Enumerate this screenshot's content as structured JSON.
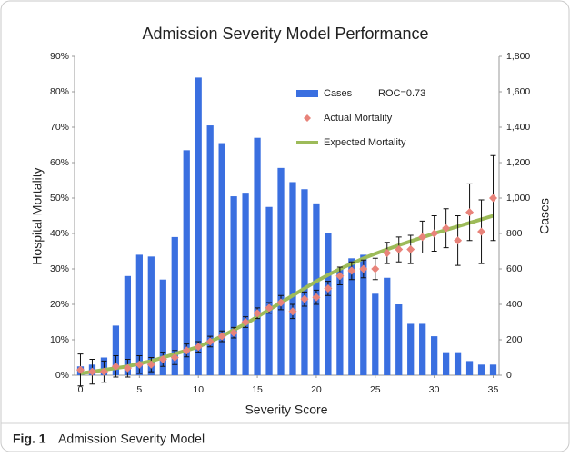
{
  "chart_data": {
    "type": "bar-line",
    "title": "Admission Severity Model Performance",
    "x_label": "Severity Score",
    "y_label": "Hospital Mortality",
    "y2_label": "Cases",
    "annotation": "ROC=0.73",
    "x": [
      0,
      1,
      2,
      3,
      4,
      5,
      6,
      7,
      8,
      9,
      10,
      11,
      12,
      13,
      14,
      15,
      16,
      17,
      18,
      19,
      20,
      21,
      22,
      23,
      24,
      25,
      26,
      27,
      28,
      29,
      30,
      31,
      32,
      33,
      34,
      35
    ],
    "xlim": [
      -0.5,
      35.5
    ],
    "xticks": [
      0,
      5,
      10,
      15,
      20,
      25,
      30,
      35
    ],
    "ylim": [
      0,
      90
    ],
    "yticks": [
      {
        "value": 0,
        "label": "0%"
      },
      {
        "value": 10,
        "label": "10%"
      },
      {
        "value": 20,
        "label": "20%"
      },
      {
        "value": 30,
        "label": "30%"
      },
      {
        "value": 40,
        "label": "40%"
      },
      {
        "value": 50,
        "label": "50%"
      },
      {
        "value": 60,
        "label": "60%"
      },
      {
        "value": 70,
        "label": "70%"
      },
      {
        "value": 80,
        "label": "80%"
      },
      {
        "value": 90,
        "label": "90%"
      }
    ],
    "y2lim": [
      0,
      1800
    ],
    "y2ticks": [
      0,
      200,
      400,
      600,
      800,
      {
        "value": 1000,
        "label": "1,000"
      },
      {
        "value": 1200,
        "label": "1,200"
      },
      {
        "value": 1400,
        "label": "1,400"
      },
      {
        "value": 1600,
        "label": "1,600"
      },
      {
        "value": 1800,
        "label": "1,800"
      }
    ],
    "series": [
      {
        "name": "Cases",
        "kind": "bar",
        "axis": "y2",
        "color": "#3a6fe0",
        "values": [
          50,
          60,
          100,
          280,
          560,
          680,
          670,
          540,
          780,
          1270,
          1680,
          1410,
          1310,
          1010,
          1030,
          1340,
          950,
          1170,
          1090,
          1050,
          970,
          800,
          600,
          660,
          680,
          460,
          550,
          400,
          290,
          290,
          220,
          130,
          130,
          80,
          60,
          60
        ]
      },
      {
        "name": "Actual Mortality",
        "kind": "points",
        "color": "#e8837a",
        "values": [
          1.5,
          1,
          1,
          2.5,
          2,
          3,
          3,
          4.5,
          5,
          7,
          8,
          9.5,
          11,
          12,
          15,
          17.5,
          19,
          20.5,
          18,
          21.5,
          22,
          24.5,
          28,
          29.5,
          30,
          30,
          34.5,
          35.5,
          35.5,
          39,
          40,
          41.5,
          38,
          46,
          40.5,
          50
        ],
        "errors": [
          4.5,
          3.5,
          3,
          3,
          2.5,
          2.5,
          2,
          2,
          2,
          1.8,
          1.5,
          1.5,
          1.5,
          1.5,
          1.5,
          1.5,
          1.5,
          2,
          2,
          2,
          2,
          2,
          2.5,
          2.5,
          2.5,
          3,
          3,
          3.5,
          4,
          4.5,
          5,
          5.5,
          7,
          8,
          9,
          12
        ]
      },
      {
        "name": "Expected Mortality",
        "kind": "line",
        "color": "#9dbb59",
        "values": [
          0.5,
          1,
          1.5,
          2,
          2.5,
          3.3,
          4,
          5,
          6,
          7,
          8,
          9.5,
          11,
          12.8,
          14.5,
          16.5,
          18.5,
          20.5,
          22.5,
          24.5,
          26.5,
          28.3,
          30,
          31.5,
          33,
          34.3,
          35.5,
          36.7,
          37.8,
          38.9,
          40,
          41,
          42,
          43,
          44,
          45
        ]
      }
    ]
  },
  "caption": {
    "label": "Fig. 1",
    "text": "Admission Severity Model"
  }
}
